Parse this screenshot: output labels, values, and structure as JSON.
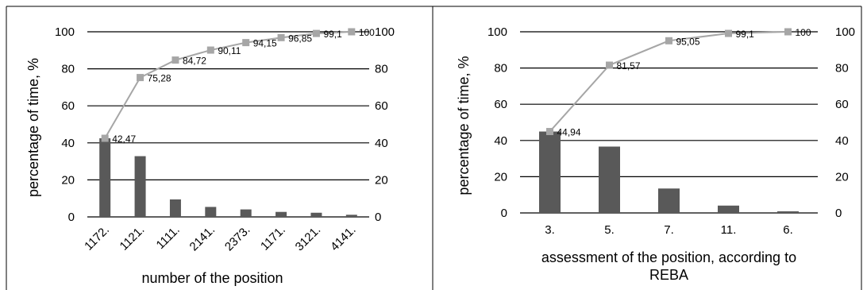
{
  "chart_data": [
    {
      "type": "bar",
      "title": "",
      "xlabel": "number of the position",
      "ylabel": "percentage of time, %",
      "ylim": [
        0,
        100
      ],
      "yticks": [
        0,
        20,
        40,
        60,
        80,
        100
      ],
      "y2lim": [
        0,
        100
      ],
      "y2ticks": [
        0,
        20,
        40,
        60,
        80,
        100
      ],
      "grid": true,
      "legend": "none",
      "categories": [
        "1172.",
        "1121.",
        "1111.",
        "2141.",
        "2373.",
        "1171.",
        "3121.",
        "4141."
      ],
      "series": [
        {
          "values": [
            42.47,
            32.81,
            9.44,
            5.39,
            4.04,
            2.7,
            2.25,
            1.15
          ]
        },
        {
          "type": "line",
          "axis": "secondary",
          "values": [
            42.47,
            75.28,
            84.72,
            90.11,
            94.15,
            96.85,
            99.1,
            100
          ],
          "labels": [
            "42,47",
            "75,28",
            "84,72",
            "90,11",
            "94,15",
            "96,85",
            "99,1",
            "100"
          ]
        }
      ],
      "colors": {
        "bar": "#595959",
        "line": "#a6a6a6"
      }
    },
    {
      "type": "bar",
      "title": "",
      "xlabel": "assessment of the position, according to REBA",
      "ylabel": "percentage of time, %",
      "ylim": [
        0,
        100
      ],
      "yticks": [
        0,
        20,
        40,
        60,
        80,
        100
      ],
      "y2lim": [
        0,
        100
      ],
      "y2ticks": [
        0,
        20,
        40,
        60,
        80,
        100
      ],
      "grid": true,
      "legend": "none",
      "categories": [
        "3.",
        "5.",
        "7.",
        "11.",
        "6."
      ],
      "series": [
        {
          "values": [
            44.94,
            36.63,
            13.48,
            4.05,
            0.9
          ]
        },
        {
          "type": "line",
          "axis": "secondary",
          "values": [
            44.94,
            81.57,
            95.05,
            99.1,
            100
          ],
          "labels": [
            "44,94",
            "81,57",
            "95,05",
            "99,1",
            "100"
          ]
        }
      ],
      "colors": {
        "bar": "#595959",
        "line": "#a6a6a6"
      }
    }
  ]
}
